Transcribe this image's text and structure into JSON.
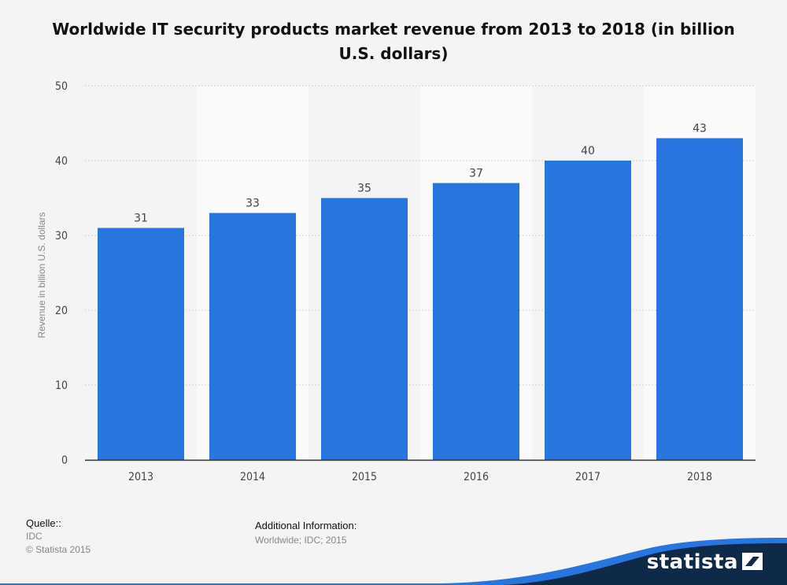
{
  "chart_data": {
    "type": "bar",
    "title": "Worldwide IT security products market revenue from 2013 to 2018 (in billion U.S. dollars)",
    "categories": [
      "2013",
      "2014",
      "2015",
      "2016",
      "2017",
      "2018"
    ],
    "values": [
      31,
      33,
      35,
      37,
      40,
      43
    ],
    "data_labels": [
      "31",
      "33",
      "35",
      "37",
      "40",
      "43"
    ],
    "ylabel": "Revenue in billion U.S. dollars",
    "xlabel": "",
    "ylim": [
      0,
      50
    ],
    "yticks": [
      "0",
      "10",
      "20",
      "30",
      "40",
      "50"
    ],
    "grid": true,
    "bar_color": "#2876dd"
  },
  "footer": {
    "source_heading": "Quelle::",
    "source_name": "IDC",
    "copyright": "© Statista 2015",
    "info_heading": "Additional Information:",
    "info_text": "Worldwide; IDC; 2015"
  },
  "brand": {
    "name": "statista",
    "icon": "statista-logo-icon",
    "colors": {
      "navy": "#0f2a48",
      "blue": "#2876dd"
    }
  }
}
